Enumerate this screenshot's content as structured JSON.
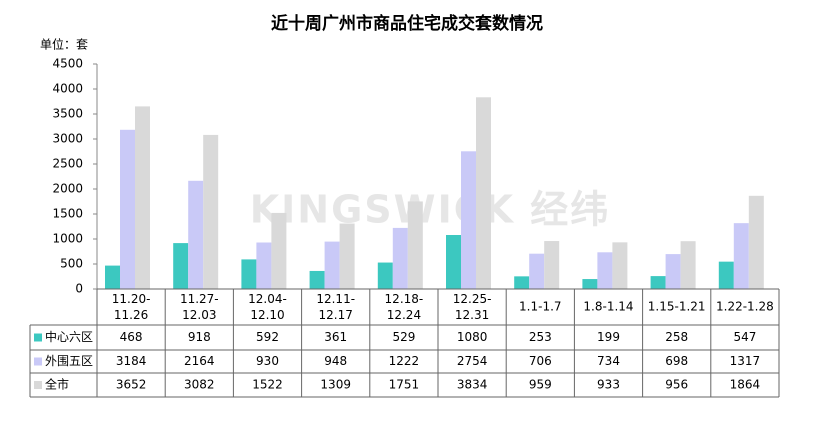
{
  "chart_data": {
    "type": "bar",
    "title": "近十周广州市商品住宅成交套数情况",
    "y_unit": "单位：套",
    "watermark": "KINGSWICK 经纬",
    "categories": [
      "11.20-11.26",
      "11.27-12.03",
      "12.04-12.10",
      "12.11-12.17",
      "12.18-12.24",
      "12.25-12.31",
      "1.1-1.7",
      "1.8-1.14",
      "1.15-1.21",
      "1.22-1.28"
    ],
    "series": [
      {
        "name": "中心六区",
        "color": "#3cc8c0",
        "values": [
          468,
          918,
          592,
          361,
          529,
          1080,
          253,
          199,
          258,
          547
        ]
      },
      {
        "name": "外围五区",
        "color": "#c9c9f7",
        "values": [
          3184,
          2164,
          930,
          948,
          1222,
          2754,
          706,
          734,
          698,
          1317
        ]
      },
      {
        "name": "全市",
        "color": "#d9d9d9",
        "values": [
          3652,
          3082,
          1522,
          1309,
          1751,
          3834,
          959,
          933,
          956,
          1864
        ]
      }
    ],
    "ylim": [
      0,
      4500
    ],
    "yticks": [
      0,
      500,
      1000,
      1500,
      2000,
      2500,
      3000,
      3500,
      4000,
      4500
    ]
  }
}
